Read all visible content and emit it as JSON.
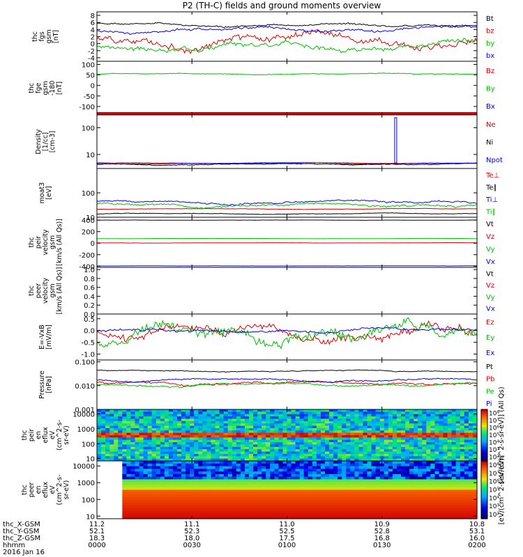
{
  "chart_data": {
    "type": "line",
    "title": "P2 (TH-C) fields and ground moments overview",
    "date_label": "2016 Jan 16",
    "time_ticks": [
      "0000",
      "0030",
      "0100",
      "0130",
      "0200"
    ],
    "time_range": [
      0,
      120
    ],
    "ephemeris": {
      "rows": [
        {
          "label": "thc_X-GSM",
          "values": [
            "11.2",
            "11.1",
            "11.0",
            "10.9",
            "10.8"
          ]
        },
        {
          "label": "thc_Y-GSM",
          "values": [
            "52.1",
            "52.3",
            "52.5",
            "52.8",
            "53.1"
          ]
        },
        {
          "label": "thc_Z-GSM",
          "values": [
            "18.3",
            "18.0",
            "17.5",
            "16.8",
            "16.0"
          ]
        },
        {
          "label": "hhmm",
          "values": [
            "0000",
            "0030",
            "0100",
            "0130",
            "0200"
          ]
        }
      ]
    },
    "panels": [
      {
        "id": "fgs",
        "ylabel_lines": [
          "thc",
          "fgs",
          "gsm",
          "[nT]"
        ],
        "ylim": [
          -5,
          9
        ],
        "ytick_labels": [
          "8",
          "6",
          "4",
          "2",
          "0",
          "-2",
          "-4"
        ],
        "yticks": [
          8,
          6,
          4,
          2,
          0,
          -2,
          -4
        ],
        "series": [
          {
            "name": "Bt",
            "color": "#000000",
            "base": 5.2,
            "amp": 0.6,
            "seed": 1
          },
          {
            "name": "bz",
            "color": "#e00000",
            "base": 1.0,
            "amp": 2.5,
            "seed": 2
          },
          {
            "name": "by",
            "color": "#00c000",
            "base": -0.8,
            "amp": 1.6,
            "seed": 3
          },
          {
            "name": "bx",
            "color": "#0000e0",
            "base": 3.9,
            "amp": 0.9,
            "seed": 4
          }
        ]
      },
      {
        "id": "fge",
        "ylabel_lines": [
          "thc",
          "fge",
          "gsm",
          "-180",
          "[nT]"
        ],
        "ylim": [
          -140,
          115
        ],
        "ytick_labels": [
          "100",
          "50",
          "0",
          "-50",
          "-100"
        ],
        "yticks": [
          100,
          50,
          0,
          -50,
          -100
        ],
        "series": [
          {
            "name": "Bz",
            "color": "#e00000",
            "base": -150,
            "amp": 0,
            "seed": 5
          },
          {
            "name": "By",
            "color": "#00c000",
            "base": 55,
            "amp": 4,
            "seed": 6
          },
          {
            "name": "Bx",
            "color": "#0000e0",
            "base": -300,
            "amp": 0,
            "seed": 7
          }
        ]
      },
      {
        "id": "density",
        "ylabel_lines": [
          "Density",
          "[1/cc]",
          "[cm-3]"
        ],
        "ylim": [
          3,
          300
        ],
        "log": true,
        "ytick_labels": [
          "100",
          "10"
        ],
        "yticks": [
          100,
          10
        ],
        "series": [
          {
            "name": "Ne",
            "color": "#e00000",
            "base": 4.8,
            "amp": 0.2,
            "seed": 8
          },
          {
            "name": "Ni",
            "color": "#000000",
            "base": 4.3,
            "amp": 0.4,
            "seed": 9
          },
          {
            "name": "Npot",
            "color": "#0000e0",
            "base": 4.6,
            "amp": 0.2,
            "seed": 10
          }
        ]
      },
      {
        "id": "temp",
        "ylabel_lines": [
          "moat3",
          "[eV]"
        ],
        "ylim": [
          10,
          1000
        ],
        "log": true,
        "ytick_labels": [
          "100",
          "10"
        ],
        "yticks": [
          100,
          10
        ],
        "series": [
          {
            "name": "Te⊥",
            "color": "#e00000",
            "base": 22,
            "amp": 1,
            "seed": 11
          },
          {
            "name": "Te∥",
            "color": "#000000",
            "base": 14,
            "amp": 0.8,
            "seed": 12
          },
          {
            "name": "Ti⊥",
            "color": "#0000e0",
            "base": 42,
            "amp": 8,
            "seed": 13
          },
          {
            "name": "Ti∥",
            "color": "#00c000",
            "base": 32,
            "amp": 7,
            "seed": 14
          }
        ]
      },
      {
        "id": "peir_vel",
        "ylabel_lines": [
          "thc",
          "peir",
          "velocity",
          "gsm",
          "[km/s (All Qs)]"
        ],
        "ylim": [
          -420,
          450
        ],
        "ytick_labels": [
          "400",
          "200",
          "0",
          "-200",
          "-400"
        ],
        "yticks": [
          400,
          200,
          0,
          -200,
          -400
        ],
        "series": [
          {
            "name": "Vt",
            "color": "#000000",
            "base": 400,
            "amp": 3,
            "seed": 15
          },
          {
            "name": "Vz",
            "color": "#e00000",
            "base": 5,
            "amp": 3,
            "seed": 16
          },
          {
            "name": "Vy",
            "color": "#00c000",
            "base": 80,
            "amp": 3,
            "seed": 17
          },
          {
            "name": "Vx",
            "color": "#0000e0",
            "base": -395,
            "amp": 2,
            "seed": 18
          }
        ]
      },
      {
        "id": "peer_vel",
        "ylabel_lines": [
          "thc",
          "peer",
          "velocity",
          "gsm",
          "[km/s (All Qs)]"
        ],
        "ylim": [
          0,
          1.05
        ],
        "ytick_labels": [
          "1.0",
          "0.8",
          "0.6",
          "0.4",
          "0.2",
          "0.0"
        ],
        "yticks": [
          1.0,
          0.8,
          0.6,
          0.4,
          0.2,
          0.0
        ],
        "series": [
          {
            "name": "Vt",
            "color": "#000000",
            "base": -5,
            "amp": 0,
            "seed": 19
          },
          {
            "name": "Vz",
            "color": "#e00000",
            "base": -5,
            "amp": 0,
            "seed": 20
          },
          {
            "name": "Vy",
            "color": "#00c000",
            "base": -5,
            "amp": 0,
            "seed": 21
          },
          {
            "name": "Vx",
            "color": "#0000e0",
            "base": -5,
            "amp": 0,
            "seed": 22
          }
        ]
      },
      {
        "id": "efield",
        "ylabel_lines": [
          "E=-VxB",
          "[mV/m]"
        ],
        "ylim": [
          -1.25,
          0.7
        ],
        "ytick_labels": [
          "0.5",
          "0.0",
          "-0.5",
          "-1.0"
        ],
        "yticks": [
          0.5,
          0.0,
          -0.5,
          -1.0
        ],
        "series": [
          {
            "name": "Ez",
            "color": "#e00000",
            "base": -0.05,
            "amp": 0.45,
            "seed": 23
          },
          {
            "name": "Ey",
            "color": "#00c000",
            "base": -0.2,
            "amp": 0.6,
            "seed": 24
          },
          {
            "name": "Ex",
            "color": "#0000e0",
            "base": 0.0,
            "amp": 0.12,
            "seed": 25
          }
        ]
      },
      {
        "id": "pressure",
        "ylabel_lines": [
          "Pressure",
          "[nPa]"
        ],
        "ylim": [
          0.001,
          0.12
        ],
        "log": true,
        "ytick_labels": [
          "0.100",
          "0.010",
          "0.001"
        ],
        "yticks": [
          0.1,
          0.01,
          0.001
        ],
        "series": [
          {
            "name": "Pt",
            "color": "#000000",
            "base": 0.042,
            "amp": 0.004,
            "seed": 26
          },
          {
            "name": "Pb",
            "color": "#e00000",
            "base": 0.013,
            "amp": 0.003,
            "seed": 27
          },
          {
            "name": "Pe",
            "color": "#00c000",
            "base": 0.011,
            "amp": 0.002,
            "seed": 28
          },
          {
            "name": "Pi",
            "color": "#0000e0",
            "base": 0.017,
            "amp": 0.003,
            "seed": 29
          }
        ]
      }
    ],
    "spectrograms": [
      {
        "id": "peir_en",
        "ylabel_lines": [
          "thc",
          "peir",
          "en",
          "eflux",
          "eV",
          "(cm^2-s-",
          "sr-eV)"
        ],
        "ylim": [
          7,
          20000
        ],
        "ytick_labels": [
          "10000",
          "1000",
          "100",
          "10"
        ],
        "yticks": [
          10000,
          1000,
          100,
          10
        ]
      },
      {
        "id": "peer_en",
        "ylabel_lines": [
          "thc",
          "peer",
          "en",
          "eflux",
          "eV",
          "(cm^2-s-",
          "sr-eV)"
        ],
        "ylim": [
          7,
          20000
        ],
        "ytick_labels": [
          "10000",
          "1000",
          "100",
          "10"
        ],
        "yticks": [
          10000,
          1000,
          100,
          10
        ],
        "data_start_min": 7
      }
    ],
    "colorbars": [
      {
        "label": "[eV/(cm^2-s-sr-eV)] (All Qs)",
        "tick_labels": [
          "10⁸",
          "10⁷",
          "10⁶",
          "10⁵",
          "10⁴",
          "10³",
          "10²"
        ]
      },
      {
        "label": "[eV/(cm^2-s-sr-eV)]",
        "tick_labels": [
          "10⁸",
          "10⁷",
          "10⁶",
          "10⁵",
          "10⁴",
          "10³",
          "10²"
        ]
      }
    ]
  }
}
